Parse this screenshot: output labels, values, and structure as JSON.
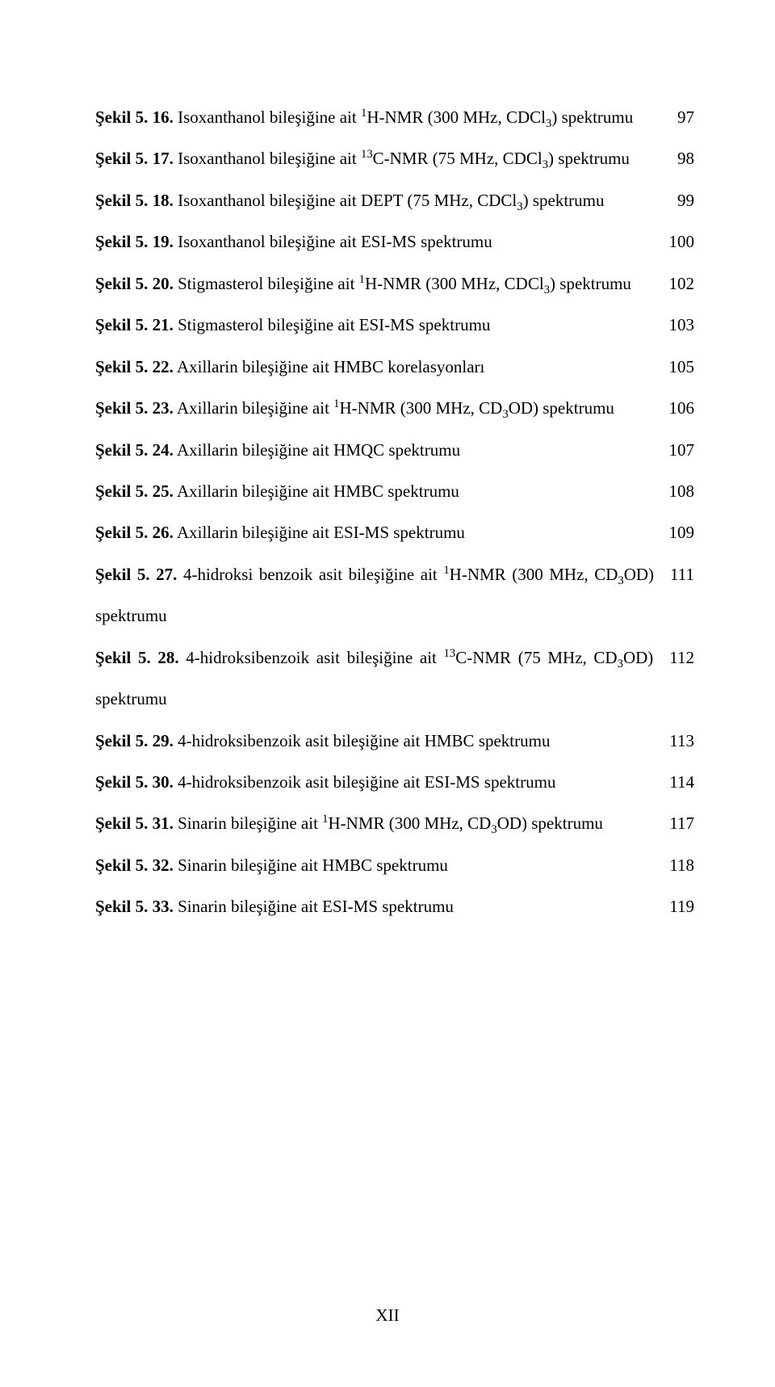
{
  "page_number": "XII",
  "text_color": "#000000",
  "background_color": "#ffffff",
  "font_family": "Times New Roman",
  "base_font_size_pt": 16,
  "entries": [
    {
      "label": "Şekil 5. 16.",
      "desc_parts": [
        {
          "t": " Isoxanthanol bileşiğine ait "
        },
        {
          "t": "1",
          "sup": true
        },
        {
          "t": "H-NMR (300 MHz, CDCl"
        },
        {
          "t": "3",
          "sub": true
        },
        {
          "t": ") spektrumu"
        }
      ],
      "page": "97"
    },
    {
      "label": "Şekil 5. 17.",
      "desc_parts": [
        {
          "t": " Isoxanthanol bileşiğine ait "
        },
        {
          "t": "13",
          "sup": true
        },
        {
          "t": "C-NMR (75 MHz, CDCl"
        },
        {
          "t": "3",
          "sub": true
        },
        {
          "t": ") spektrumu"
        }
      ],
      "page": "98"
    },
    {
      "label": "Şekil 5. 18.",
      "desc_parts": [
        {
          "t": " Isoxanthanol bileşiğine ait DEPT (75 MHz, CDCl"
        },
        {
          "t": "3",
          "sub": true
        },
        {
          "t": ") spektrumu"
        }
      ],
      "page": "99"
    },
    {
      "label": "Şekil 5. 19.",
      "desc_parts": [
        {
          "t": " Isoxanthanol bileşiğine ait ESI-MS spektrumu"
        }
      ],
      "page": "100"
    },
    {
      "label": "Şekil 5. 20.",
      "desc_parts": [
        {
          "t": " Stigmasterol bileşiğine ait "
        },
        {
          "t": "1",
          "sup": true
        },
        {
          "t": "H-NMR (300 MHz, CDCl"
        },
        {
          "t": "3",
          "sub": true
        },
        {
          "t": ") spektrumu"
        }
      ],
      "page": "102"
    },
    {
      "label": "Şekil 5. 21.",
      "desc_parts": [
        {
          "t": " Stigmasterol bileşiğine ait ESI-MS spektrumu"
        }
      ],
      "page": "103"
    },
    {
      "label": "Şekil 5. 22.",
      "desc_parts": [
        {
          "t": " Axillarin bileşiğine ait HMBC korelasyonları"
        }
      ],
      "page": "105"
    },
    {
      "label": "Şekil 5. 23.",
      "desc_parts": [
        {
          "t": " Axillarin bileşiğine ait "
        },
        {
          "t": "1",
          "sup": true
        },
        {
          "t": "H-NMR (300 MHz, CD"
        },
        {
          "t": "3",
          "sub": true
        },
        {
          "t": "OD) spektrumu"
        }
      ],
      "page": "106"
    },
    {
      "label": "Şekil 5. 24.",
      "desc_parts": [
        {
          "t": " Axillarin bileşiğine ait HMQC spektrumu"
        }
      ],
      "page": "107"
    },
    {
      "label": "Şekil 5. 25.",
      "desc_parts": [
        {
          "t": " Axillarin bileşiğine ait HMBC spektrumu"
        }
      ],
      "page": "108"
    },
    {
      "label": "Şekil 5. 26.",
      "desc_parts": [
        {
          "t": " Axillarin bileşiğine ait ESI-MS spektrumu"
        }
      ],
      "page": "109"
    },
    {
      "label": "Şekil 5. 27.",
      "desc_parts": [
        {
          "t": " 4-hidroksi benzoik asit bileşiğine ait "
        },
        {
          "t": "1",
          "sup": true
        },
        {
          "t": "H-NMR (300 MHz, CD"
        },
        {
          "t": "3",
          "sub": true
        },
        {
          "t": "OD) spektrumu"
        }
      ],
      "page": "111",
      "wrap": true
    },
    {
      "label": "Şekil 5. 28.",
      "desc_parts": [
        {
          "t": " 4-hidroksibenzoik asit bileşiğine ait "
        },
        {
          "t": "13",
          "sup": true
        },
        {
          "t": "C-NMR (75 MHz, CD"
        },
        {
          "t": "3",
          "sub": true
        },
        {
          "t": "OD) spektrumu"
        }
      ],
      "page": "112",
      "wrap": true
    },
    {
      "label": "Şekil 5. 29.",
      "desc_parts": [
        {
          "t": " 4-hidroksibenzoik asit bileşiğine ait HMBC spektrumu"
        }
      ],
      "page": "113"
    },
    {
      "label": "Şekil 5. 30.",
      "desc_parts": [
        {
          "t": " 4-hidroksibenzoik asit bileşiğine ait ESI-MS spektrumu"
        }
      ],
      "page": "114"
    },
    {
      "label": "Şekil 5. 31.",
      "desc_parts": [
        {
          "t": " Sinarin bileşiğine ait "
        },
        {
          "t": "1",
          "sup": true
        },
        {
          "t": "H-NMR (300 MHz, CD"
        },
        {
          "t": "3",
          "sub": true
        },
        {
          "t": "OD) spektrumu"
        }
      ],
      "page": "117"
    },
    {
      "label": "Şekil 5. 32.",
      "desc_parts": [
        {
          "t": " Sinarin bileşiğine ait HMBC spektrumu"
        }
      ],
      "page": "118"
    },
    {
      "label": "Şekil 5. 33.",
      "desc_parts": [
        {
          "t": " Sinarin bileşiğine ait ESI-MS spektrumu"
        }
      ],
      "page": "119"
    }
  ]
}
